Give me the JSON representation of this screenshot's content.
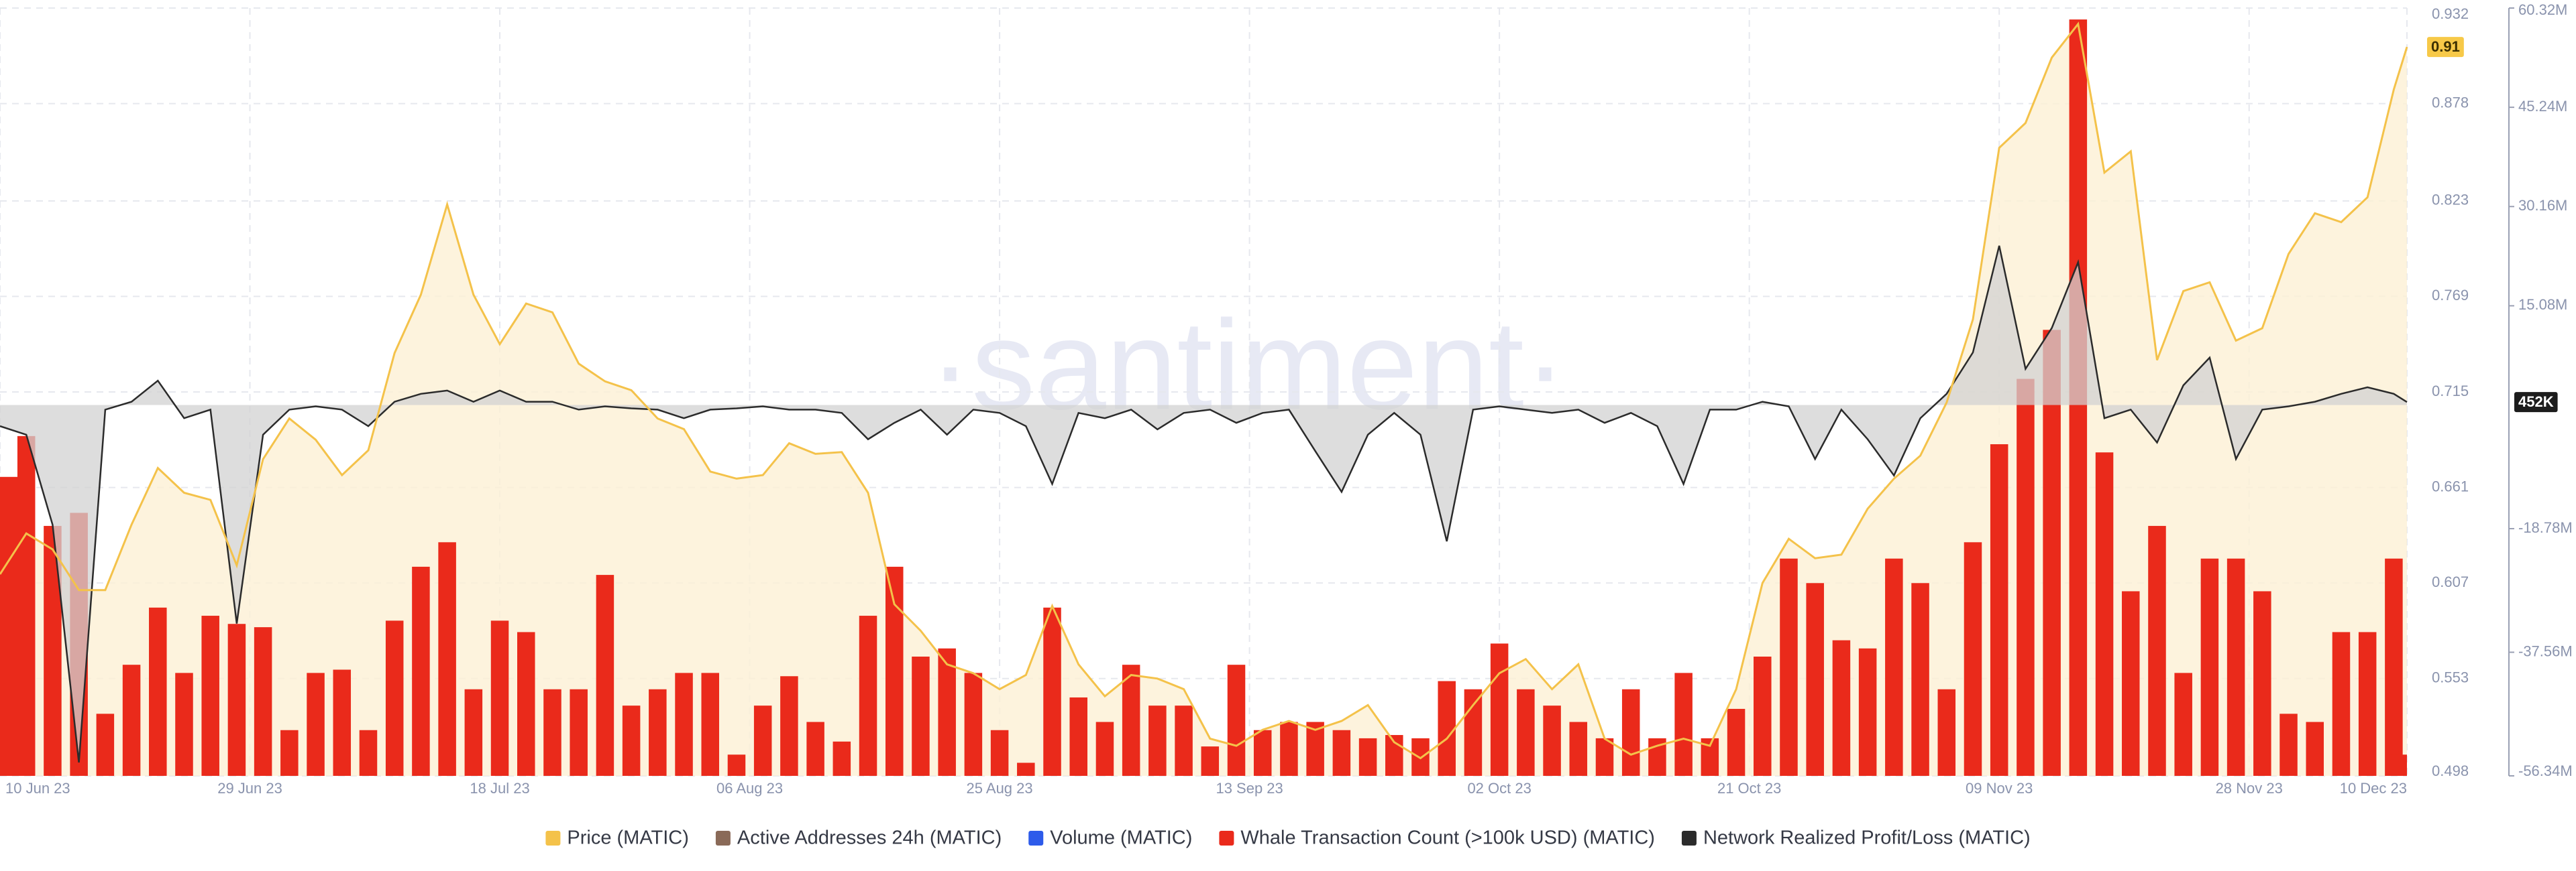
{
  "chart_data": {
    "type": "combo",
    "watermark": "·santiment·",
    "x": [
      "2023-06-10",
      "2023-06-12",
      "2023-06-14",
      "2023-06-16",
      "2023-06-18",
      "2023-06-20",
      "2023-06-22",
      "2023-06-24",
      "2023-06-26",
      "2023-06-28",
      "2023-06-30",
      "2023-07-02",
      "2023-07-04",
      "2023-07-06",
      "2023-07-08",
      "2023-07-10",
      "2023-07-12",
      "2023-07-14",
      "2023-07-16",
      "2023-07-18",
      "2023-07-20",
      "2023-07-22",
      "2023-07-24",
      "2023-07-26",
      "2023-07-28",
      "2023-07-30",
      "2023-08-01",
      "2023-08-03",
      "2023-08-05",
      "2023-08-07",
      "2023-08-09",
      "2023-08-11",
      "2023-08-13",
      "2023-08-15",
      "2023-08-17",
      "2023-08-19",
      "2023-08-21",
      "2023-08-23",
      "2023-08-25",
      "2023-08-27",
      "2023-08-29",
      "2023-08-31",
      "2023-09-02",
      "2023-09-04",
      "2023-09-06",
      "2023-09-08",
      "2023-09-10",
      "2023-09-12",
      "2023-09-14",
      "2023-09-16",
      "2023-09-18",
      "2023-09-20",
      "2023-09-22",
      "2023-09-24",
      "2023-09-26",
      "2023-09-28",
      "2023-09-30",
      "2023-10-02",
      "2023-10-04",
      "2023-10-06",
      "2023-10-08",
      "2023-10-10",
      "2023-10-12",
      "2023-10-14",
      "2023-10-16",
      "2023-10-18",
      "2023-10-20",
      "2023-10-22",
      "2023-10-24",
      "2023-10-26",
      "2023-10-28",
      "2023-10-30",
      "2023-11-01",
      "2023-11-03",
      "2023-11-05",
      "2023-11-07",
      "2023-11-09",
      "2023-11-11",
      "2023-11-13",
      "2023-11-15",
      "2023-11-17",
      "2023-11-19",
      "2023-11-21",
      "2023-11-23",
      "2023-11-25",
      "2023-11-27",
      "2023-11-29",
      "2023-12-01",
      "2023-12-03",
      "2023-12-05",
      "2023-12-07",
      "2023-12-09",
      "2023-12-10"
    ],
    "xlim": [
      "2023-06-10",
      "2023-12-10"
    ],
    "xticks": [
      {
        "value": "2023-06-10",
        "label": "10 Jun 23"
      },
      {
        "value": "2023-06-29",
        "label": "29 Jun 23"
      },
      {
        "value": "2023-07-18",
        "label": "18 Jul 23"
      },
      {
        "value": "2023-08-06",
        "label": "06 Aug 23"
      },
      {
        "value": "2023-08-25",
        "label": "25 Aug 23"
      },
      {
        "value": "2023-09-13",
        "label": "13 Sep 23"
      },
      {
        "value": "2023-10-02",
        "label": "02 Oct 23"
      },
      {
        "value": "2023-10-21",
        "label": "21 Oct 23"
      },
      {
        "value": "2023-11-09",
        "label": "09 Nov 23"
      },
      {
        "value": "2023-11-28",
        "label": "28 Nov 23"
      },
      {
        "value": "2023-12-10",
        "label": "10 Dec 23"
      }
    ],
    "ylim": [
      0.498,
      0.932
    ],
    "yticks": [
      0.498,
      0.553,
      0.607,
      0.661,
      0.715,
      0.769,
      0.823,
      0.878,
      0.932
    ],
    "y2lim": [
      -56340000,
      60320000
    ],
    "y2ticks": [
      {
        "value": -56340000,
        "label": "-56.34M"
      },
      {
        "value": -37560000,
        "label": "-37.56M"
      },
      {
        "value": -18780000,
        "label": "-18.78M"
      },
      {
        "value": 15080000,
        "label": "15.08M"
      },
      {
        "value": 30160000,
        "label": "30.16M"
      },
      {
        "value": 45240000,
        "label": "45.24M"
      },
      {
        "value": 60320000,
        "label": "60.32M"
      }
    ],
    "y3lim": [
      0,
      470
    ],
    "grid": true,
    "legend": "bottom",
    "series": [
      {
        "name": "Price (MATIC)",
        "color": "#f4c24a",
        "kind": "area",
        "axis": "y",
        "values": [
          0.612,
          0.635,
          0.626,
          0.603,
          0.603,
          0.64,
          0.672,
          0.658,
          0.654,
          0.617,
          0.677,
          0.7,
          0.688,
          0.668,
          0.682,
          0.737,
          0.77,
          0.821,
          0.77,
          0.742,
          0.765,
          0.76,
          0.731,
          0.721,
          0.716,
          0.7,
          0.694,
          0.67,
          0.666,
          0.668,
          0.686,
          0.68,
          0.681,
          0.658,
          0.595,
          0.58,
          0.561,
          0.556,
          0.547,
          0.555,
          0.594,
          0.561,
          0.543,
          0.555,
          0.553,
          0.547,
          0.519,
          0.515,
          0.524,
          0.529,
          0.524,
          0.529,
          0.538,
          0.517,
          0.508,
          0.519,
          0.538,
          0.556,
          0.564,
          0.547,
          0.561,
          0.519,
          0.51,
          0.515,
          0.519,
          0.515,
          0.547,
          0.607,
          0.632,
          0.621,
          0.623,
          0.649,
          0.666,
          0.679,
          0.709,
          0.756,
          0.853,
          0.867,
          0.904,
          0.923,
          0.839,
          0.851,
          0.733,
          0.772,
          0.777,
          0.744,
          0.751,
          0.793,
          0.816,
          0.811,
          0.825,
          0.886,
          0.91
        ]
      },
      {
        "name": "Active Addresses 24h (MATIC)",
        "color": "#8a6a58"
      },
      {
        "name": "Volume (MATIC)",
        "color": "#2d5bea"
      },
      {
        "name": "Whale Transaction Count (>100k USD) (MATIC)",
        "color": "#ea2a1b",
        "kind": "bar",
        "axis": "y3",
        "values": [
          183,
          208,
          153,
          161,
          38,
          68,
          103,
          63,
          98,
          93,
          91,
          28,
          63,
          65,
          28,
          95,
          128,
          143,
          53,
          95,
          88,
          53,
          53,
          123,
          43,
          53,
          63,
          63,
          13,
          43,
          61,
          33,
          21,
          98,
          128,
          73,
          78,
          63,
          28,
          8,
          103,
          48,
          33,
          68,
          43,
          43,
          18,
          68,
          28,
          33,
          33,
          28,
          23,
          25,
          23,
          58,
          53,
          81,
          53,
          43,
          33,
          23,
          53,
          23,
          63,
          23,
          41,
          73,
          133,
          118,
          83,
          78,
          133,
          118,
          53,
          143,
          203,
          243,
          273,
          463,
          198,
          113,
          153,
          63,
          133,
          133,
          113,
          38,
          33,
          88,
          88,
          133,
          13
        ]
      },
      {
        "name": "Network Realized Profit/Loss (MATIC)",
        "color": "#2b2b2b",
        "kind": "baseline",
        "axis": "y2",
        "values": [
          -3200000,
          -4500000,
          -18200000,
          -54300000,
          -700000,
          500000,
          3700000,
          -2000000,
          -700000,
          -33200000,
          -4500000,
          -700000,
          -200000,
          -700000,
          -3200000,
          500000,
          1700000,
          2200000,
          500000,
          2200000,
          500000,
          500000,
          -700000,
          -200000,
          -500000,
          -700000,
          -2000000,
          -700000,
          -500000,
          -200000,
          -700000,
          -700000,
          -1200000,
          -5200000,
          -2700000,
          -700000,
          -4500000,
          -700000,
          -1200000,
          -3200000,
          -12000000,
          -1200000,
          -2000000,
          -700000,
          -3700000,
          -1200000,
          -700000,
          -2700000,
          -1200000,
          -700000,
          -7000000,
          -13200000,
          -4500000,
          -1200000,
          -4500000,
          -20700000,
          -700000,
          -200000,
          -700000,
          -1200000,
          -700000,
          -2700000,
          -1200000,
          -3200000,
          -12000000,
          -700000,
          -700000,
          500000,
          -200000,
          -8200000,
          -700000,
          -5200000,
          -10700000,
          -2000000,
          1700000,
          8000000,
          24200000,
          5500000,
          11700000,
          21700000,
          -2000000,
          -700000,
          -5700000,
          3000000,
          7200000,
          -8200000,
          -700000,
          -200000,
          500000,
          1700000,
          2700000,
          1700000,
          452000
        ]
      }
    ],
    "annotations": [
      {
        "text": "0.91",
        "value": 0.91,
        "axis": "y",
        "color": "#f7c948"
      },
      {
        "text": "452K",
        "value": 452000,
        "axis": "y2",
        "color": "#1c1c1c"
      }
    ]
  }
}
